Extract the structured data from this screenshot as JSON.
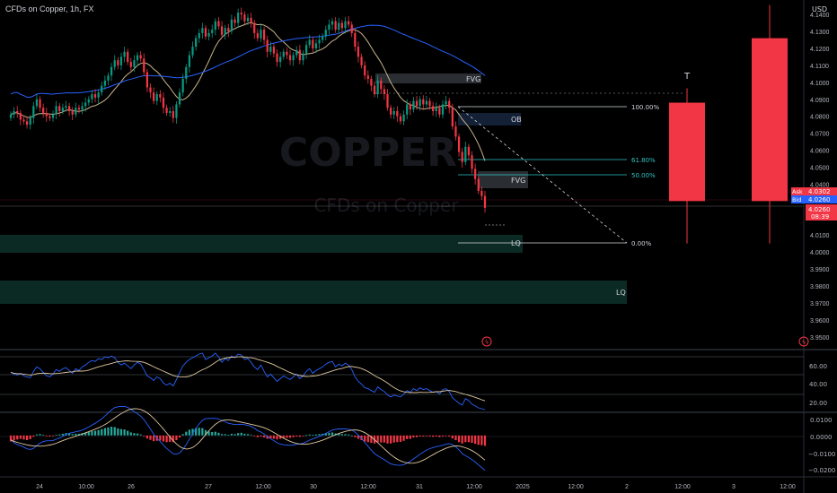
{
  "header": {
    "title": "CFDs on Copper, 1h, FX",
    "currency": "USD"
  },
  "watermark": {
    "symbol": "COPPER",
    "name": "CFDs on Copper"
  },
  "price_axis": {
    "ticks": [
      "4.1400",
      "4.1300",
      "4.1200",
      "4.1100",
      "4.1000",
      "4.0900",
      "4.0800",
      "4.0700",
      "4.0600",
      "4.0500",
      "4.0400",
      "4.0100",
      "4.0000",
      "3.9900",
      "3.9800",
      "3.9700",
      "3.9600",
      "3.9500"
    ],
    "ask_label": "Ask",
    "ask_value": "4.0302",
    "bid_label": "Bid",
    "bid_value": "4.0260",
    "last_value": "4.0260",
    "countdown": "08:39",
    "colors": {
      "ask": "#f23645",
      "bid": "#2962ff",
      "last": "#f23645"
    }
  },
  "time_axis": {
    "labels": [
      "24",
      "10:00",
      "26",
      "27",
      "12:00",
      "30",
      "12:00",
      "31",
      "12:00",
      "2025",
      "12:00",
      "2",
      "12:00",
      "3",
      "12:00"
    ]
  },
  "rsi_axis": {
    "ticks": [
      "60.00",
      "40.00",
      "20.00"
    ]
  },
  "macd_axis": {
    "ticks": [
      "0.0100",
      "0.0000",
      "−0.0100",
      "−0.0200"
    ]
  },
  "annotations": {
    "fvg_upper": "FVG",
    "fvg_lower": "FVG",
    "ob": "OB",
    "lq_upper": "LQ",
    "lq_lower": "LQ",
    "fib_100": "100.00%",
    "fib_618": "61.80%",
    "fib_50": "50.00%",
    "fib_0": "0.00%",
    "projection": "T"
  },
  "chart_data": {
    "type": "candlestick",
    "title": "CFDs on Copper, 1h, FX",
    "ylim": [
      3.9425,
      4.1485
    ],
    "grid": false,
    "candles_close": [
      4.081,
      4.083,
      4.082,
      4.078,
      4.077,
      4.075,
      4.079,
      4.086,
      4.09,
      4.085,
      4.082,
      4.08,
      4.079,
      4.081,
      4.086,
      4.083,
      4.085,
      4.086,
      4.083,
      4.081,
      4.085,
      4.084,
      4.086,
      4.088,
      4.09,
      4.093,
      4.091,
      4.094,
      4.098,
      4.101,
      4.104,
      4.109,
      4.113,
      4.11,
      4.115,
      4.118,
      4.112,
      4.109,
      4.113,
      4.116,
      4.114,
      4.106,
      4.097,
      4.094,
      4.089,
      4.093,
      4.091,
      4.085,
      4.082,
      4.083,
      4.079,
      4.087,
      4.094,
      4.102,
      4.109,
      4.116,
      4.121,
      4.126,
      4.129,
      4.132,
      4.127,
      4.129,
      4.131,
      4.136,
      4.133,
      4.128,
      4.132,
      4.13,
      4.137,
      4.135,
      4.141,
      4.14,
      4.136,
      4.138,
      4.135,
      4.129,
      4.126,
      4.131,
      4.125,
      4.118,
      4.121,
      4.117,
      4.112,
      4.115,
      4.118,
      4.116,
      4.113,
      4.116,
      4.119,
      4.113,
      4.117,
      4.122,
      4.125,
      4.12,
      4.123,
      4.125,
      4.127,
      4.131,
      4.134,
      4.136,
      4.131,
      4.135,
      4.132,
      4.136,
      4.134,
      4.129,
      4.121,
      4.115,
      4.11,
      4.104,
      4.102,
      4.098,
      4.093,
      4.101,
      4.096,
      4.093,
      4.085,
      4.081,
      4.083,
      4.08,
      4.077,
      4.081,
      4.087,
      4.084,
      4.089,
      4.086,
      4.09,
      4.087,
      4.089,
      4.086,
      4.083,
      4.085,
      4.081,
      4.087,
      4.089,
      4.085,
      4.074,
      4.068,
      4.059,
      4.053,
      4.062,
      4.057,
      4.049,
      4.043,
      4.036,
      4.033,
      4.026
    ],
    "rsi": [
      52,
      50,
      49,
      51,
      48,
      47,
      46,
      53,
      58,
      56,
      52,
      48,
      47,
      50,
      55,
      53,
      56,
      57,
      54,
      51,
      56,
      54,
      58,
      60,
      63,
      65,
      64,
      67,
      66,
      69,
      68,
      70,
      68,
      63,
      60,
      62,
      59,
      56,
      60,
      63,
      61,
      55,
      48,
      46,
      43,
      47,
      45,
      40,
      38,
      40,
      37,
      44,
      52,
      59,
      63,
      66,
      68,
      70,
      72,
      73,
      66,
      68,
      70,
      73,
      69,
      63,
      67,
      65,
      70,
      68,
      72,
      71,
      66,
      67,
      63,
      58,
      55,
      60,
      53,
      47,
      50,
      46,
      42,
      45,
      48,
      46,
      44,
      47,
      50,
      45,
      48,
      53,
      56,
      51,
      54,
      56,
      58,
      61,
      63,
      64,
      58,
      61,
      59,
      62,
      60,
      55,
      47,
      42,
      39,
      35,
      34,
      32,
      30,
      36,
      33,
      31,
      27,
      25,
      27,
      26,
      25,
      28,
      32,
      30,
      34,
      32,
      35,
      33,
      34,
      32,
      30,
      31,
      28,
      33,
      34,
      31,
      24,
      21,
      18,
      16,
      23,
      21,
      17,
      15,
      13,
      12,
      11
    ],
    "rsi_ylim": [
      10,
      75
    ],
    "macd_hist": [
      -0.0018,
      -0.0015,
      -0.0012,
      -0.001,
      -0.0012,
      -0.0014,
      -0.0011,
      -0.0004,
      0.0003,
      0.0004,
      0.0002,
      -0.0001,
      -0.0003,
      -0.0002,
      0.0002,
      0.0003,
      0.0005,
      0.0007,
      0.0006,
      0.0004,
      0.0005,
      0.0005,
      0.0007,
      0.0009,
      0.0011,
      0.0013,
      0.0014,
      0.0016,
      0.0019,
      0.0022,
      0.0024,
      0.0026,
      0.0025,
      0.0021,
      0.0019,
      0.0018,
      0.0014,
      0.0009,
      0.0007,
      0.0006,
      0.0003,
      -0.0002,
      -0.0009,
      -0.0013,
      -0.0017,
      -0.0016,
      -0.0015,
      -0.0018,
      -0.002,
      -0.0019,
      -0.002,
      -0.0014,
      -0.0006,
      0.0004,
      0.0011,
      0.0017,
      0.002,
      0.0022,
      0.0023,
      0.0022,
      0.0016,
      0.0012,
      0.001,
      0.0011,
      0.0008,
      0.0004,
      0.0004,
      0.0002,
      0.0005,
      0.0004,
      0.0007,
      0.0008,
      0.0005,
      0.0004,
      0.0002,
      -0.0002,
      -0.0005,
      -0.0003,
      -0.0006,
      -0.001,
      -0.0009,
      -0.001,
      -0.0012,
      -0.001,
      -0.0008,
      -0.0007,
      -0.0007,
      -0.0005,
      -0.0003,
      -0.0004,
      -0.0002,
      0.0001,
      0.0003,
      0.0002,
      0.0003,
      0.0004,
      0.0005,
      0.0007,
      0.0008,
      0.0009,
      0.0006,
      0.0006,
      0.0004,
      0.0004,
      0.0003,
      0,
      -0.0005,
      -0.001,
      -0.0014,
      -0.0018,
      -0.002,
      -0.0022,
      -0.0024,
      -0.002,
      -0.0021,
      -0.0021,
      -0.0024,
      -0.0024,
      -0.0021,
      -0.002,
      -0.0019,
      -0.0016,
      -0.0011,
      -0.001,
      -0.0006,
      -0.0005,
      -0.0003,
      -0.0003,
      -0.0002,
      -0.0003,
      -0.0004,
      -0.0003,
      -0.0005,
      -0.0003,
      -0.0002,
      -0.0003,
      -0.0009,
      -0.0014,
      -0.002,
      -0.0024,
      -0.002,
      -0.002,
      -0.0022,
      -0.0025,
      -0.0028,
      -0.0029,
      -0.0031
    ],
    "macd_ylim": [
      -0.026,
      0.014
    ],
    "projection_candles": [
      {
        "open": 4.088,
        "high": 4.0965,
        "low": 4.005,
        "close": 4.03,
        "direction": "down"
      },
      {
        "open": 4.126,
        "high": 4.1455,
        "low": 4.005,
        "close": 4.03,
        "direction": "down"
      }
    ],
    "fib_levels": [
      {
        "label": "100.00%",
        "price": 4.0875
      },
      {
        "label": "61.80%",
        "price": 4.0545
      },
      {
        "label": "50.00%",
        "price": 4.0455
      },
      {
        "label": "0.00%",
        "price": 4.0055
      }
    ],
    "zones": [
      {
        "label": "FVG",
        "top": 4.1065,
        "bottom": 4.1005
      },
      {
        "label": "OB",
        "top": 4.082,
        "bottom": 4.0755
      },
      {
        "label": "FVG",
        "top": 4.046,
        "bottom": 4.0365
      },
      {
        "label": "LQ",
        "top": 4.012,
        "bottom": 3.999
      },
      {
        "label": "LQ",
        "top": 3.9845,
        "bottom": 3.97
      }
    ],
    "colors": {
      "up": "#089981",
      "down": "#f23645",
      "ma_fast": "#c8b48c",
      "ma_slow": "#2962ff",
      "rsi": "#2962ff",
      "rsi_signal": "#e0c8a0"
    }
  }
}
